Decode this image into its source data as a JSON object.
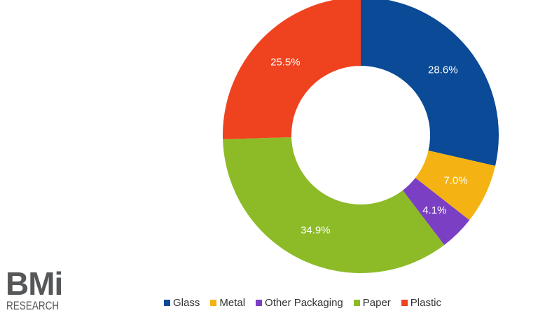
{
  "chart_data": {
    "type": "pie",
    "donut": true,
    "categories": [
      "Glass",
      "Metal",
      "Other Packaging",
      "Paper",
      "Plastic"
    ],
    "values": [
      28.6,
      7.0,
      4.1,
      34.9,
      25.5
    ],
    "data_labels": [
      "28.6%",
      "7.0%",
      "4.1%",
      "34.9%",
      "25.5%"
    ],
    "colors": [
      "#0a4a96",
      "#f4b312",
      "#7b3fc4",
      "#8dbb28",
      "#ef4320"
    ],
    "start_angle": "12 o'clock, clockwise",
    "legend_position": "bottom"
  },
  "logo": {
    "main": "BMi",
    "sub": "RESEARCH"
  }
}
